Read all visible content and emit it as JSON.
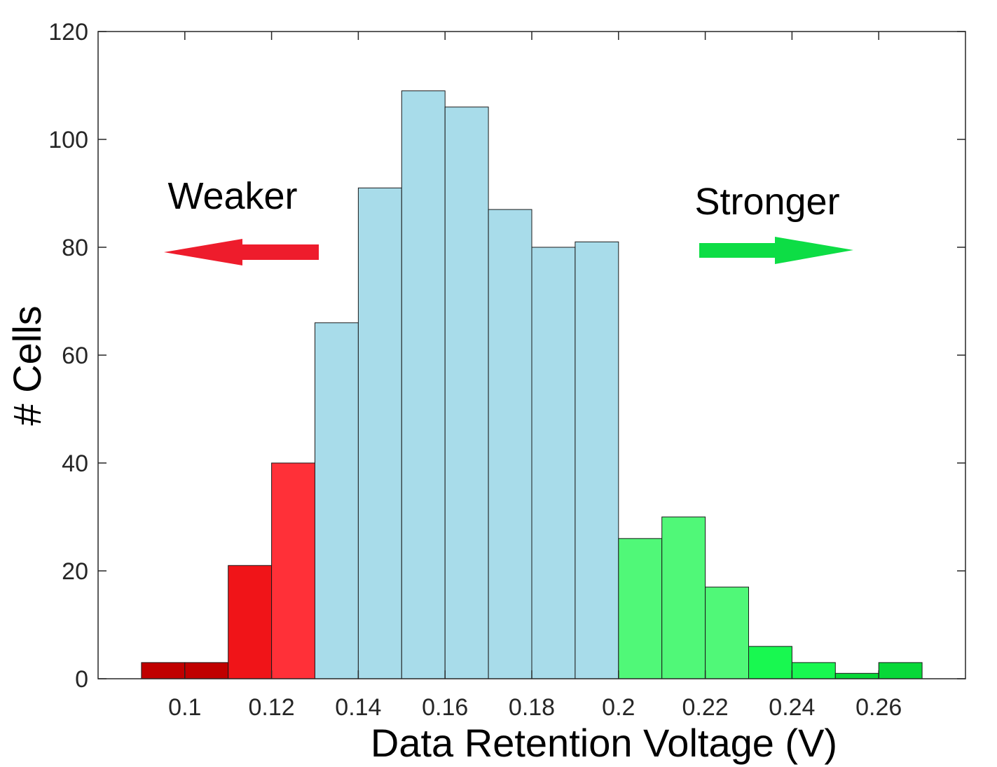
{
  "chart_data": {
    "type": "bar",
    "xlabel": "Data Retention Voltage (V)",
    "ylabel": "# Cells",
    "xlim": [
      0.08,
      0.28
    ],
    "ylim": [
      0,
      120
    ],
    "xticks": [
      0.1,
      0.12,
      0.14,
      0.16,
      0.18,
      0.2,
      0.22,
      0.24,
      0.26
    ],
    "xtick_labels": [
      "0.1",
      "0.12",
      "0.14",
      "0.16",
      "0.18",
      "0.2",
      "0.22",
      "0.24",
      "0.26"
    ],
    "yticks": [
      0,
      20,
      40,
      60,
      80,
      100,
      120
    ],
    "ytick_labels": [
      "0",
      "20",
      "40",
      "60",
      "80",
      "100",
      "120"
    ],
    "grid": false,
    "bin_width": 0.01,
    "bins": [
      {
        "x0": 0.09,
        "x1": 0.1,
        "value": 3,
        "color": "#c00000"
      },
      {
        "x0": 0.1,
        "x1": 0.11,
        "value": 3,
        "color": "#c00000"
      },
      {
        "x0": 0.11,
        "x1": 0.12,
        "value": 21,
        "color": "#f01418"
      },
      {
        "x0": 0.12,
        "x1": 0.13,
        "value": 40,
        "color": "#ff3038"
      },
      {
        "x0": 0.13,
        "x1": 0.14,
        "value": 66,
        "color": "#a8dcea"
      },
      {
        "x0": 0.14,
        "x1": 0.15,
        "value": 91,
        "color": "#a8dcea"
      },
      {
        "x0": 0.15,
        "x1": 0.16,
        "value": 109,
        "color": "#a8dcea"
      },
      {
        "x0": 0.16,
        "x1": 0.17,
        "value": 106,
        "color": "#a8dcea"
      },
      {
        "x0": 0.17,
        "x1": 0.18,
        "value": 87,
        "color": "#a8dcea"
      },
      {
        "x0": 0.18,
        "x1": 0.19,
        "value": 80,
        "color": "#a8dcea"
      },
      {
        "x0": 0.19,
        "x1": 0.2,
        "value": 81,
        "color": "#a8dcea"
      },
      {
        "x0": 0.2,
        "x1": 0.21,
        "value": 26,
        "color": "#50f878"
      },
      {
        "x0": 0.21,
        "x1": 0.22,
        "value": 30,
        "color": "#50f878"
      },
      {
        "x0": 0.22,
        "x1": 0.23,
        "value": 17,
        "color": "#50f878"
      },
      {
        "x0": 0.23,
        "x1": 0.24,
        "value": 6,
        "color": "#18f850"
      },
      {
        "x0": 0.24,
        "x1": 0.25,
        "value": 3,
        "color": "#18f850"
      },
      {
        "x0": 0.25,
        "x1": 0.26,
        "value": 1,
        "color": "#08d838"
      },
      {
        "x0": 0.26,
        "x1": 0.27,
        "value": 3,
        "color": "#08d838"
      }
    ],
    "annotations": [
      {
        "text": "Weaker",
        "direction": "left",
        "color": "#ee1c2c"
      },
      {
        "text": "Stronger",
        "direction": "right",
        "color": "#0ddd45"
      }
    ]
  }
}
